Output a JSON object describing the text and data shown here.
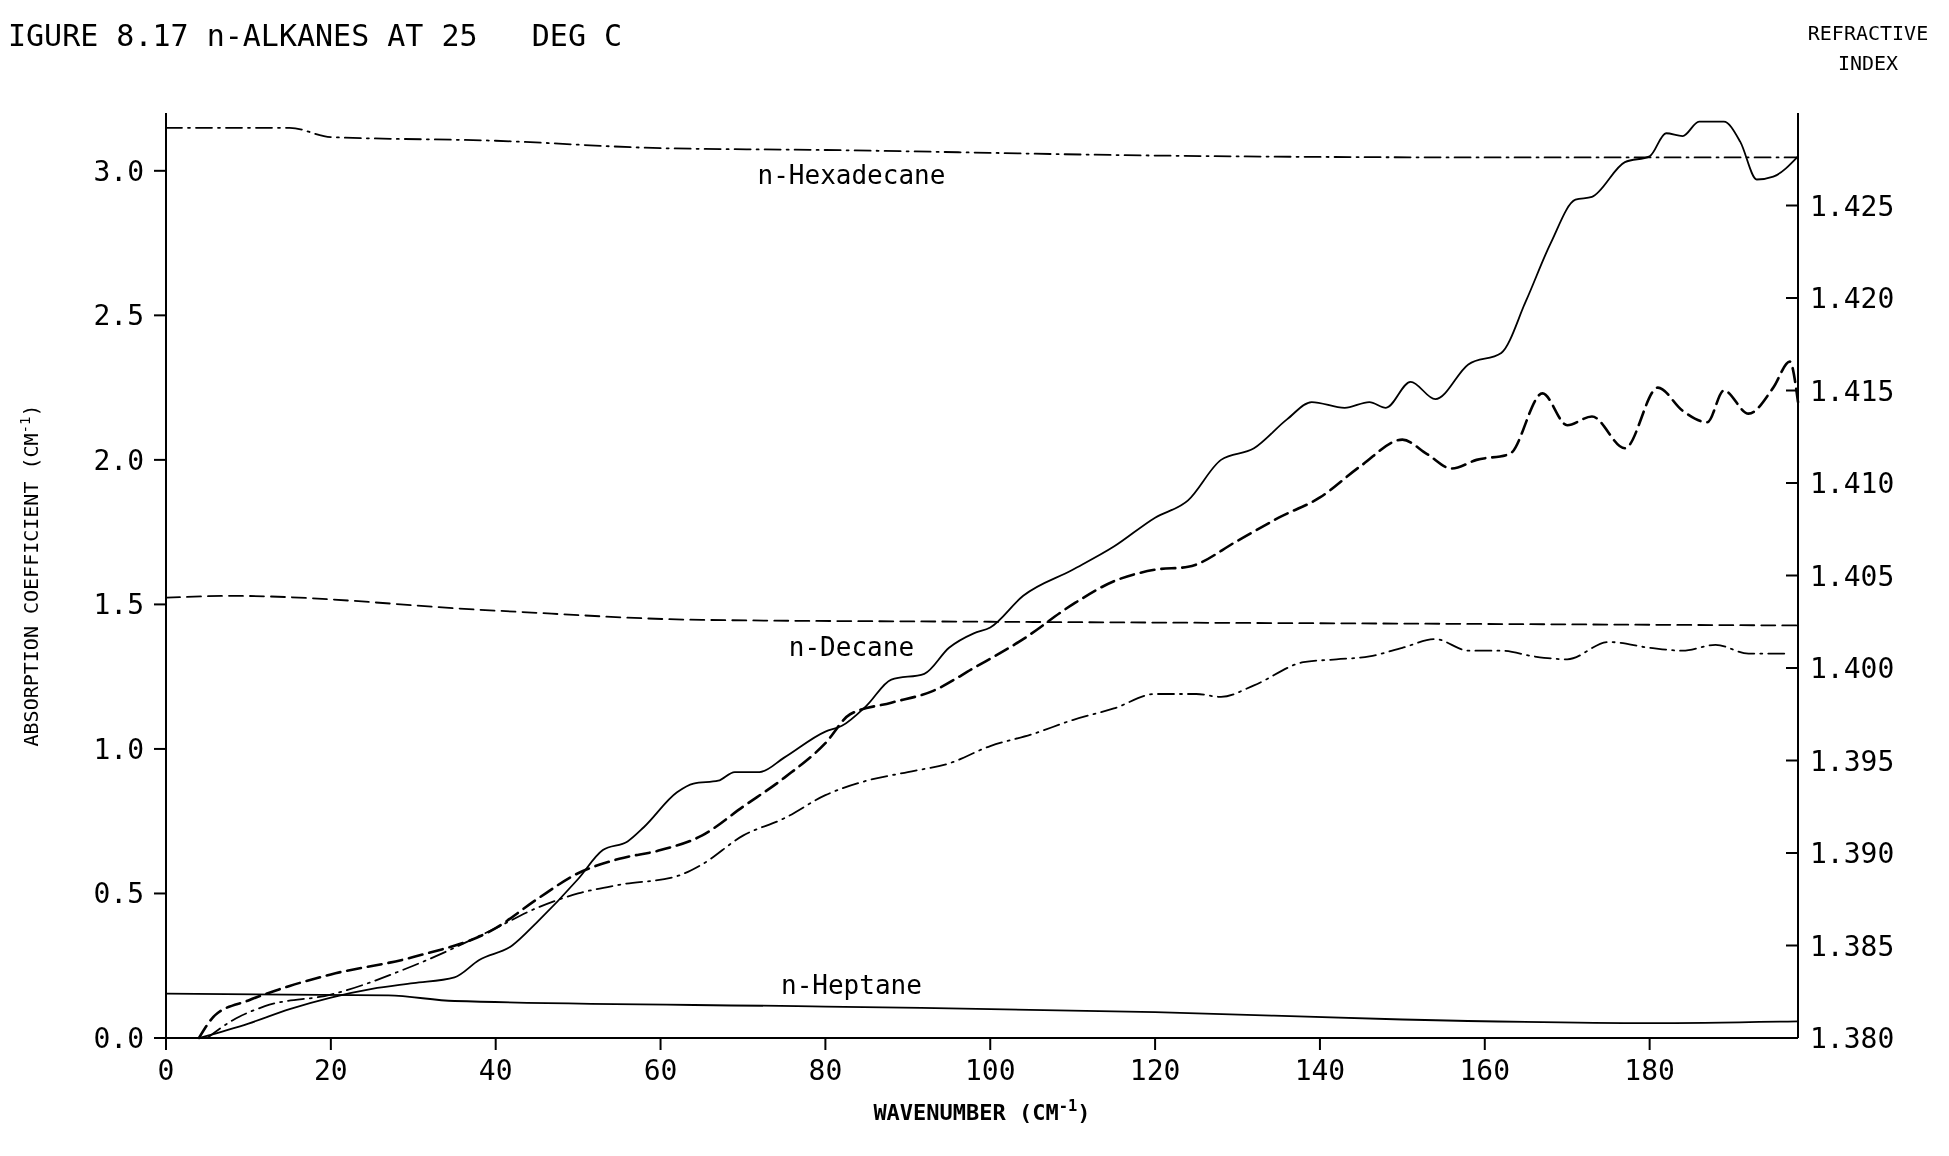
{
  "chart_data": {
    "type": "line",
    "title": "IGURE 8.17 n-ALKANES AT 25   DEG C",
    "xlabel": "WAVENUMBER (CM$^{-1}$)",
    "ylabel": "ABSORPTION COEFFICIENT (CM$^{-1}$)",
    "y2label": "REFRACTIVE INDEX",
    "xlim": [
      0,
      198
    ],
    "xticks": [
      0,
      20,
      40,
      60,
      80,
      100,
      120,
      140,
      160,
      180
    ],
    "ylim": [
      0,
      3.2
    ],
    "yticks": [
      {
        "value": 0,
        "label": "0.0"
      },
      {
        "value": 0.5,
        "label": "0.5"
      },
      {
        "value": 1,
        "label": "1.0"
      },
      {
        "value": 1.5,
        "label": "1.5"
      },
      {
        "value": 2,
        "label": "2.0"
      },
      {
        "value": 2.5,
        "label": "2.5"
      },
      {
        "value": 3,
        "label": "3.0"
      }
    ],
    "y2lim": [
      1.38,
      1.43
    ],
    "y2ticks": [
      {
        "value": 1.38,
        "label": "1.380"
      },
      {
        "value": 1.385,
        "label": "1.385"
      },
      {
        "value": 1.39,
        "label": "1.390"
      },
      {
        "value": 1.395,
        "label": "1.395"
      },
      {
        "value": 1.4,
        "label": "1.400"
      },
      {
        "value": 1.405,
        "label": "1.405"
      },
      {
        "value": 1.41,
        "label": "1.410"
      },
      {
        "value": 1.415,
        "label": "1.415"
      },
      {
        "value": 1.42,
        "label": "1.420"
      },
      {
        "value": 1.425,
        "label": "1.425"
      }
    ],
    "grid": false,
    "series": [
      {
        "color": "#000000",
        "line_style": "solid",
        "x": [
          4,
          10,
          15,
          20,
          25,
          30,
          35,
          38,
          42,
          45,
          50,
          53,
          56,
          58,
          62,
          64,
          67,
          69,
          72,
          75,
          80,
          82,
          85,
          88,
          92,
          95,
          98,
          100,
          104,
          110,
          115,
          120,
          124,
          128,
          132,
          136,
          139,
          143,
          146,
          148,
          151,
          154,
          158,
          162,
          165,
          168,
          171,
          173,
          177,
          180,
          182,
          184,
          186,
          189,
          191,
          193,
          195,
          198
        ],
        "values": [
          0,
          0.05,
          0.1,
          0.14,
          0.17,
          0.19,
          0.21,
          0.27,
          0.32,
          0.4,
          0.55,
          0.65,
          0.68,
          0.73,
          0.85,
          0.88,
          0.89,
          0.92,
          0.92,
          0.97,
          1.06,
          1.08,
          1.15,
          1.24,
          1.26,
          1.35,
          1.4,
          1.42,
          1.53,
          1.62,
          1.7,
          1.8,
          1.86,
          2,
          2.04,
          2.14,
          2.2,
          2.18,
          2.2,
          2.18,
          2.27,
          2.21,
          2.33,
          2.37,
          2.55,
          2.75,
          2.9,
          2.91,
          3.03,
          3.05,
          3.13,
          3.12,
          3.17,
          3.17,
          3.1,
          2.97,
          2.98,
          3.05
        ]
      },
      {
        "color": "#000000",
        "line_style": "dashed",
        "x": [
          4,
          6,
          10,
          15,
          20,
          30,
          40,
          45,
          50,
          55,
          60,
          65,
          70,
          75,
          80,
          83,
          88,
          93,
          98,
          104,
          110,
          115,
          120,
          124,
          130,
          135,
          140,
          145,
          150,
          153,
          156,
          159,
          163,
          167,
          170,
          173,
          177,
          181,
          184,
          187,
          189,
          192,
          195,
          197,
          198
        ],
        "values": [
          0,
          0.08,
          0.13,
          0.18,
          0.22,
          0.28,
          0.38,
          0.48,
          0.57,
          0.62,
          0.65,
          0.7,
          0.8,
          0.9,
          1.02,
          1.12,
          1.16,
          1.2,
          1.28,
          1.38,
          1.5,
          1.58,
          1.62,
          1.63,
          1.72,
          1.8,
          1.87,
          1.98,
          2.07,
          2.02,
          1.97,
          2,
          2.02,
          2.23,
          2.12,
          2.15,
          2.04,
          2.25,
          2.17,
          2.13,
          2.24,
          2.16,
          2.25,
          2.34,
          2.2
        ]
      },
      {
        "color": "#000000",
        "line_style": "dashdot",
        "x": [
          5,
          8,
          12,
          20,
          30,
          40,
          45,
          50,
          55,
          62,
          65,
          70,
          75,
          80,
          85,
          90,
          95,
          100,
          105,
          110,
          115,
          120,
          125,
          128,
          132,
          138,
          142,
          146,
          150,
          154,
          158,
          162,
          166,
          170,
          175,
          180,
          184,
          188,
          192,
          197
        ],
        "values": [
          0,
          0.06,
          0.11,
          0.15,
          0.25,
          0.38,
          0.45,
          0.5,
          0.53,
          0.56,
          0.6,
          0.7,
          0.76,
          0.84,
          0.89,
          0.92,
          0.95,
          1.01,
          1.05,
          1.1,
          1.14,
          1.19,
          1.19,
          1.18,
          1.22,
          1.3,
          1.31,
          1.32,
          1.35,
          1.38,
          1.34,
          1.34,
          1.32,
          1.31,
          1.37,
          1.35,
          1.34,
          1.36,
          1.33,
          1.33
        ]
      },
      {
        "name": "n-Hexadecane",
        "color": "#000000",
        "line_style": "dashdot",
        "axis": "y2",
        "x": [
          0,
          15,
          20,
          40,
          60,
          80,
          120,
          160,
          198
        ],
        "values": [
          1.4292,
          1.4292,
          1.4287,
          1.4285,
          1.4281,
          1.428,
          1.4277,
          1.4276,
          1.4276
        ]
      },
      {
        "name": "n-Decane",
        "color": "#000000",
        "line_style": "dashed",
        "axis": "y2",
        "x": [
          0,
          8,
          40,
          65,
          100,
          150,
          198
        ],
        "values": [
          1.4038,
          1.4039,
          1.4031,
          1.4026,
          1.4025,
          1.4024,
          1.4023
        ]
      },
      {
        "name": "n-Heptane",
        "color": "#000000",
        "line_style": "solid",
        "axis": "y2",
        "x": [
          0,
          27,
          35,
          80,
          120,
          150,
          180,
          198
        ],
        "values": [
          1.3824,
          1.3823,
          1.382,
          1.3817,
          1.3814,
          1.381,
          1.3808,
          1.3809
        ]
      }
    ]
  }
}
